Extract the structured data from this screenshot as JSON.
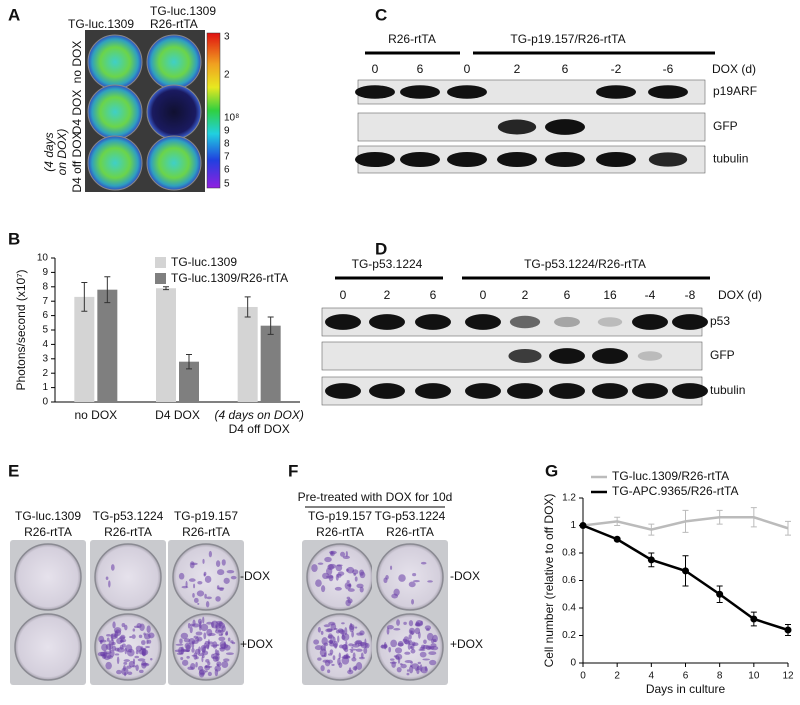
{
  "panel_labels": [
    "A",
    "B",
    "C",
    "D",
    "E",
    "F",
    "G"
  ],
  "panel_a": {
    "column_labels": [
      [
        "TG-luc.1309"
      ],
      [
        "TG-luc.1309",
        "R26-rtTA"
      ]
    ],
    "row_labels": [
      "no DOX",
      "D4 DOX",
      "D4 off DOX"
    ],
    "row_note": [
      "(4 days",
      "on DOX)"
    ],
    "colorbar_labels": [
      "3",
      "2",
      "10⁸",
      "9",
      "8",
      "7",
      "6",
      "5"
    ]
  },
  "panel_c": {
    "groups": [
      "R26-rtTA",
      "TG-p19.157/R26-rtTA"
    ],
    "lanes": [
      0,
      6,
      0,
      2,
      6,
      -2,
      -6
    ],
    "lane_title": "DOX (d)",
    "rows": [
      "p19ARF",
      "GFP",
      "tubulin"
    ]
  },
  "panel_d": {
    "groups": [
      "TG-p53.1224",
      "TG-p53.1224/R26-rtTA"
    ],
    "lanes": [
      0,
      2,
      6,
      0,
      2,
      6,
      16,
      -4,
      -8
    ],
    "lane_title": "DOX (d)",
    "rows": [
      "p53",
      "GFP",
      "tubulin"
    ]
  },
  "panel_e": {
    "columns": [
      [
        "TG-luc.1309",
        "R26-rtTA"
      ],
      [
        "TG-p53.1224",
        "R26-rtTA"
      ],
      [
        "TG-p19.157",
        "R26-rtTA"
      ]
    ],
    "rows": [
      "-DOX",
      "+DOX"
    ]
  },
  "panel_f": {
    "title": "Pre-treated with DOX for 10d",
    "columns": [
      [
        "TG-p19.157",
        "R26-rtTA"
      ],
      [
        "TG-p53.1224",
        "R26-rtTA"
      ]
    ],
    "rows": [
      "-DOX",
      "+DOX"
    ]
  },
  "chart_data": [
    {
      "type": "bar",
      "y_label": "Photons/second (x10⁷)",
      "categories": [
        "no DOX",
        "D4 DOX",
        "D4 off DOX"
      ],
      "category_note": "(4 days on DOX)",
      "series": [
        {
          "name": "TG-luc.1309",
          "color": "#d4d4d4",
          "values": [
            7.3,
            7.9,
            6.6
          ],
          "errors": [
            1.0,
            0.1,
            0.7
          ]
        },
        {
          "name": "TG-luc.1309/R26-rtTA",
          "color": "#7f7f7f",
          "values": [
            7.8,
            2.8,
            5.3
          ],
          "errors": [
            0.9,
            0.5,
            0.6
          ]
        }
      ],
      "ylim": [
        0,
        10
      ],
      "yticks": [
        0,
        1,
        2,
        3,
        4,
        5,
        6,
        7,
        8,
        9,
        10
      ],
      "legend": "top"
    },
    {
      "type": "line",
      "x_label": "Days in culture",
      "y_label": "Cell number (relative to off DOX)",
      "x": [
        0,
        2,
        4,
        6,
        8,
        10,
        12
      ],
      "series": [
        {
          "name": "TG-luc.1309/R26-rtTA",
          "color": "#bbbbbb",
          "values": [
            1,
            1.03,
            0.97,
            1.03,
            1.06,
            1.06,
            0.98
          ],
          "errors": [
            0,
            0.03,
            0.04,
            0.08,
            0.05,
            0.07,
            0.05
          ]
        },
        {
          "name": "TG-APC.9365/R26-rtTA",
          "color": "#000000",
          "marker": "circle",
          "values": [
            1,
            0.9,
            0.75,
            0.67,
            0.5,
            0.32,
            0.24
          ],
          "errors": [
            0,
            0.01,
            0.05,
            0.11,
            0.06,
            0.05,
            0.04
          ]
        }
      ],
      "xlim": [
        0,
        12
      ],
      "xticks": [
        0,
        2,
        4,
        6,
        8,
        10,
        12
      ],
      "ylim": [
        0,
        1.2
      ],
      "yticks": [
        0,
        0.2,
        0.4,
        0.6,
        0.8,
        1,
        1.2
      ],
      "legend": "top"
    }
  ]
}
